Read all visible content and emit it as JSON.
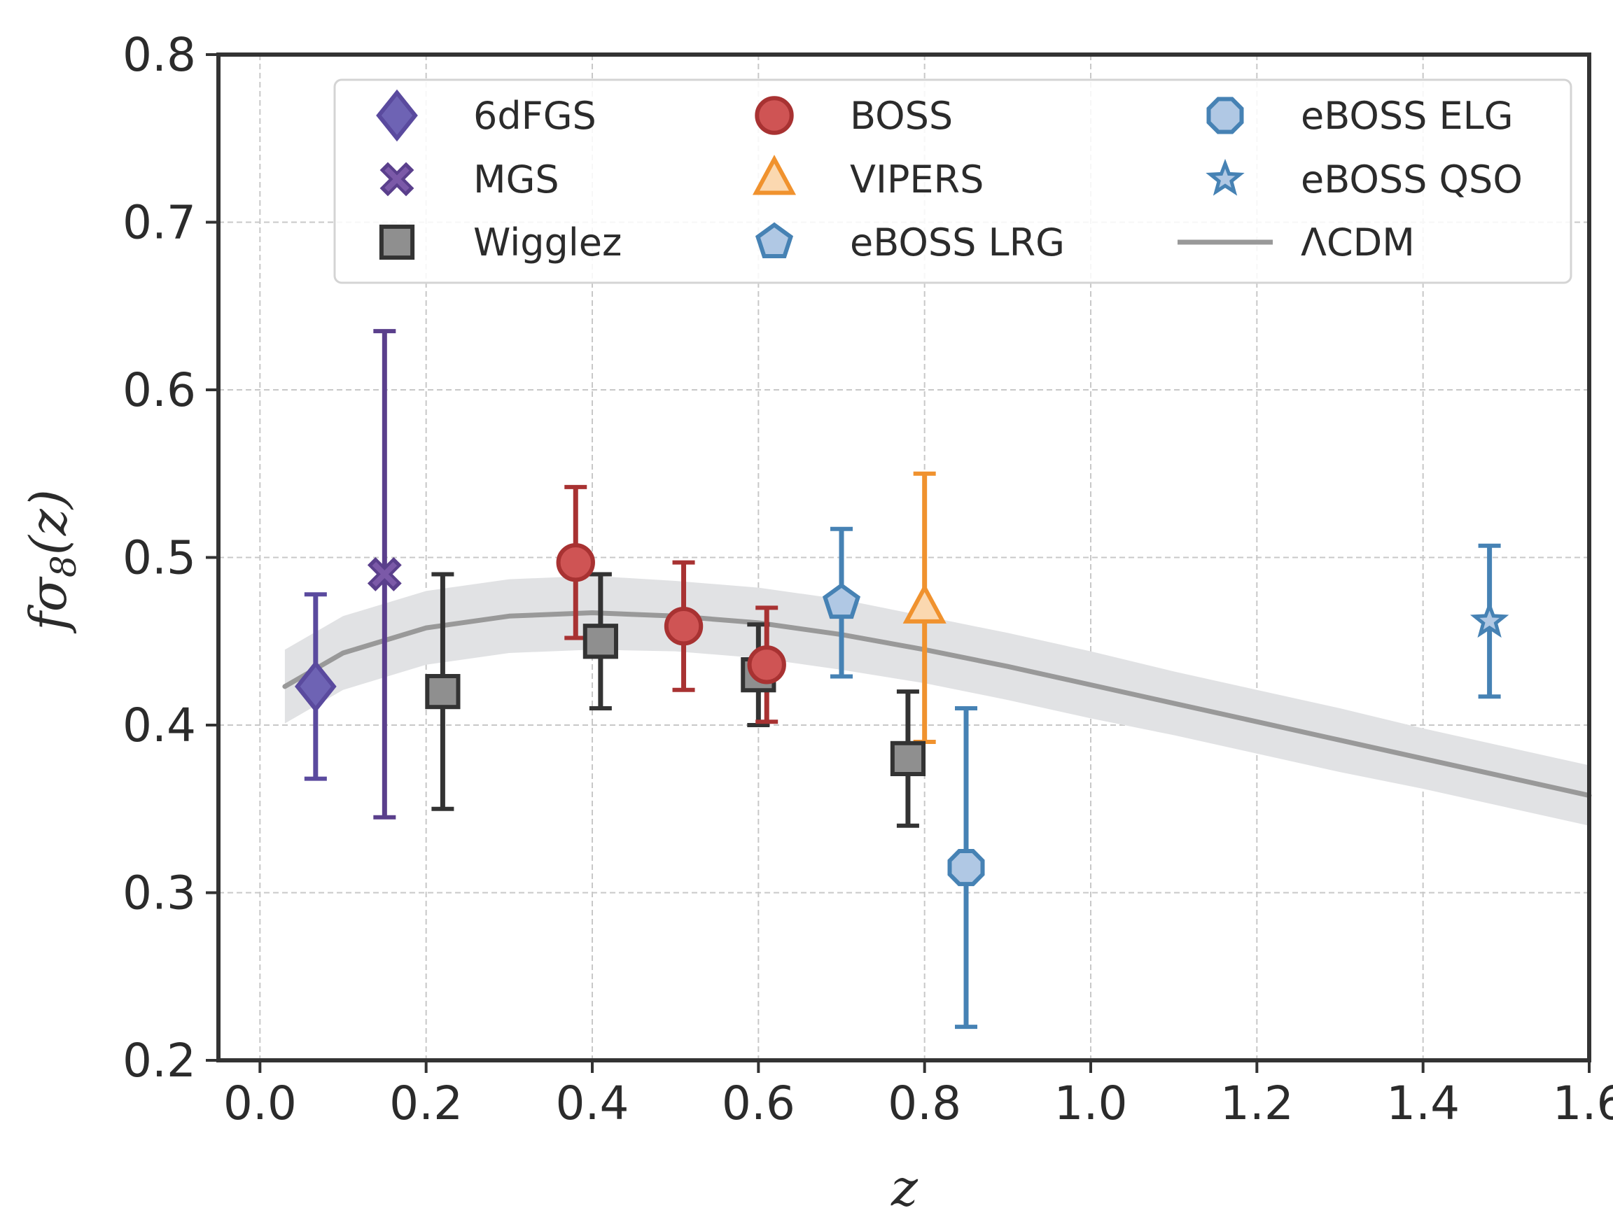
{
  "chart_data": {
    "type": "scatter",
    "title": "",
    "xlabel": "z",
    "ylabel_main": "fσ",
    "ylabel_sub": "8",
    "ylabel_arg": "(z)",
    "xlim": [
      -0.05,
      1.6
    ],
    "ylim": [
      0.2,
      0.8
    ],
    "xticks": [
      0.0,
      0.2,
      0.4,
      0.6,
      0.8,
      1.0,
      1.2,
      1.4,
      1.6
    ],
    "xtick_labels": [
      "0.0",
      "0.2",
      "0.4",
      "0.6",
      "0.8",
      "1.0",
      "1.2",
      "1.4",
      "1.6"
    ],
    "yticks": [
      0.2,
      0.3,
      0.4,
      0.5,
      0.6,
      0.7,
      0.8
    ],
    "ytick_labels": [
      "0.2",
      "0.3",
      "0.4",
      "0.5",
      "0.6",
      "0.7",
      "0.8"
    ],
    "grid": true,
    "legend_position": "top-right",
    "series": [
      {
        "name": "6dFGS",
        "marker": "diamond",
        "color": "#5a4a9e",
        "fill": "#6e63b4",
        "points": [
          {
            "x": 0.067,
            "y": 0.423,
            "lo": 0.368,
            "hi": 0.478
          }
        ]
      },
      {
        "name": "MGS",
        "marker": "x",
        "color": "#5a3f8c",
        "fill": "#7b59a8",
        "points": [
          {
            "x": 0.15,
            "y": 0.49,
            "lo": 0.345,
            "hi": 0.635
          }
        ]
      },
      {
        "name": "Wigglez",
        "marker": "square",
        "color": "#333333",
        "fill": "#8f8f8f",
        "points": [
          {
            "x": 0.22,
            "y": 0.42,
            "lo": 0.35,
            "hi": 0.49
          },
          {
            "x": 0.41,
            "y": 0.45,
            "lo": 0.41,
            "hi": 0.49
          },
          {
            "x": 0.6,
            "y": 0.43,
            "lo": 0.4,
            "hi": 0.46
          },
          {
            "x": 0.78,
            "y": 0.38,
            "lo": 0.34,
            "hi": 0.42
          }
        ]
      },
      {
        "name": "BOSS",
        "marker": "circle",
        "color": "#a83232",
        "fill": "#cf5454",
        "points": [
          {
            "x": 0.38,
            "y": 0.497,
            "lo": 0.452,
            "hi": 0.542
          },
          {
            "x": 0.51,
            "y": 0.459,
            "lo": 0.421,
            "hi": 0.497
          },
          {
            "x": 0.61,
            "y": 0.436,
            "lo": 0.402,
            "hi": 0.47
          }
        ]
      },
      {
        "name": "VIPERS",
        "marker": "triangle",
        "color": "#f0922e",
        "fill": "#fbd8b0",
        "points": [
          {
            "x": 0.8,
            "y": 0.47,
            "lo": 0.39,
            "hi": 0.55
          }
        ]
      },
      {
        "name": "eBOSS LRG",
        "marker": "pentagon",
        "color": "#4682b4",
        "fill": "#b0c8e4",
        "points": [
          {
            "x": 0.7,
            "y": 0.473,
            "lo": 0.429,
            "hi": 0.517
          }
        ]
      },
      {
        "name": "eBOSS ELG",
        "marker": "octagon",
        "color": "#4682b4",
        "fill": "#b0c8e4",
        "points": [
          {
            "x": 0.85,
            "y": 0.315,
            "lo": 0.22,
            "hi": 0.41
          }
        ]
      },
      {
        "name": "eBOSS QSO",
        "marker": "star",
        "color": "#4682b4",
        "fill": "#b0c8e4",
        "points": [
          {
            "x": 1.48,
            "y": 0.462,
            "lo": 0.417,
            "hi": 0.507
          }
        ]
      }
    ],
    "model": {
      "name": "ΛCDM",
      "color": "#999999",
      "band_color": "#e1e2e4",
      "x": [
        0.03,
        0.1,
        0.2,
        0.3,
        0.4,
        0.5,
        0.6,
        0.7,
        0.8,
        0.9,
        1.0,
        1.1,
        1.2,
        1.3,
        1.4,
        1.5,
        1.6
      ],
      "y": [
        0.423,
        0.443,
        0.458,
        0.465,
        0.467,
        0.465,
        0.461,
        0.454,
        0.445,
        0.435,
        0.424,
        0.413,
        0.402,
        0.391,
        0.38,
        0.369,
        0.358
      ],
      "band_halfwidth": [
        0.022,
        0.022,
        0.022,
        0.022,
        0.022,
        0.021,
        0.021,
        0.021,
        0.02,
        0.02,
        0.02,
        0.019,
        0.019,
        0.019,
        0.018,
        0.018,
        0.018
      ]
    }
  }
}
